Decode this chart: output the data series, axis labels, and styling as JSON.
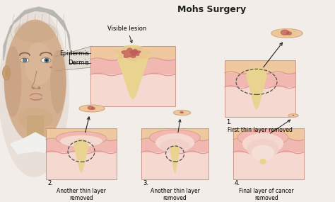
{
  "title": "Mohs Surgery",
  "title_fontsize": 9,
  "title_fontweight": "bold",
  "bg_color": "#f2ede8",
  "skin_epi_color": "#f0c8a0",
  "skin_dermis_color": "#f0b8b0",
  "skin_deep_color": "#f0c8c0",
  "skin_subcut_color": "#f5d8d0",
  "cancer_red": "#c05858",
  "cancer_dark": "#a03030",
  "cancer_tan": "#e8c890",
  "cancer_yellow": "#e8d490",
  "wave_color": "#d89898",
  "dashed_color": "#505050",
  "arrow_color": "#202020",
  "text_color": "#202020",
  "labels": {
    "visible_lesion": "Visible lesion",
    "epidermis": "Epidermis",
    "dermis": "Dermis",
    "step1_num": "1.",
    "step1_text": "First thin layer removed",
    "step2_num": "2.",
    "step2_text": "Another thin layer\nremoved",
    "step3_num": "3.",
    "step3_text": "Another thin layer\nremoved",
    "step4_num": "4.",
    "step4_text": "Final layer of cancer\nremoved"
  },
  "face_skin": "#c8a882",
  "face_shadow": "#b89070",
  "hair_color": "#c0c0b8",
  "text_fontsize": 5.5,
  "label_fontsize": 6.0
}
